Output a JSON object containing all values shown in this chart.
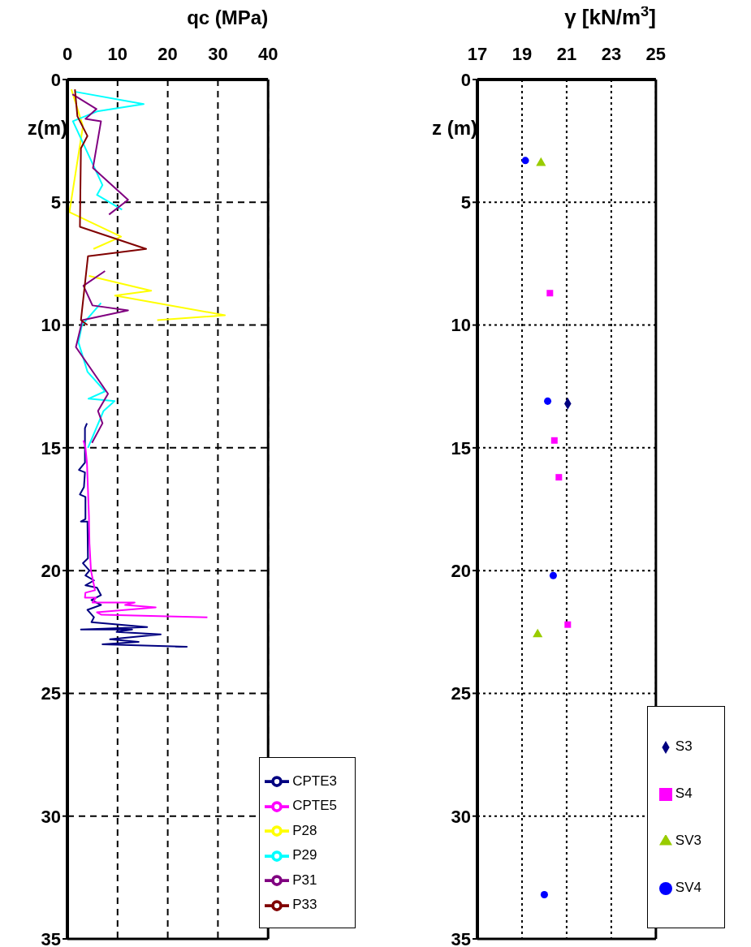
{
  "chart_data": [
    {
      "type": "line",
      "xlabel": "qc (MPa)",
      "ylabel": "z(m)",
      "xlim": [
        0,
        40
      ],
      "xticks": [
        0,
        10,
        20,
        30,
        40
      ],
      "ylim": [
        35,
        0
      ],
      "yticks": [
        0,
        5,
        10,
        15,
        20,
        25,
        30,
        35
      ],
      "grid": true,
      "legend": "bottom right",
      "marker": "none",
      "line_style": "solid",
      "series": [
        {
          "name": "CPTE3",
          "color": "#000080",
          "x": [
            3.9,
            3.5,
            3.5,
            2.3,
            3.5,
            3.3,
            2.5,
            3.6,
            3.6,
            2.7,
            4.0,
            4.1,
            3.1,
            4.4,
            3.6,
            5.3,
            3.6,
            5.9,
            6.7,
            4.8,
            6.7,
            4.0,
            5.3,
            4.8,
            15.9,
            2.7,
            12.9,
            9.8,
            18.6,
            8.5,
            14.2,
            7.0,
            23.8,
            21.5
          ],
          "values": [
            14.0,
            14.2,
            15.6,
            15.9,
            16.0,
            16.6,
            16.9,
            17.0,
            17.9,
            18.0,
            18.0,
            19.5,
            19.7,
            20.0,
            20.2,
            20.4,
            20.6,
            20.7,
            21.0,
            21.2,
            21.4,
            21.6,
            21.9,
            22.1,
            22.3,
            22.4,
            22.4,
            22.5,
            22.6,
            22.8,
            22.9,
            23.0,
            23.1,
            23.1
          ]
        },
        {
          "name": "CPTE5",
          "color": "#ff00ff",
          "x": [
            3.2,
            3.6,
            3.9,
            4.1,
            4.3,
            4.4,
            4.7,
            5.2,
            5.5,
            3.6,
            3.5,
            5.7,
            5.0,
            13.4,
            11.5,
            17.6,
            5.9,
            6.8,
            27.9
          ],
          "values": [
            14.7,
            15.0,
            15.6,
            16.7,
            17.8,
            18.9,
            20.0,
            20.5,
            20.8,
            20.9,
            21.1,
            21.1,
            21.3,
            21.3,
            21.4,
            21.5,
            21.7,
            21.8,
            21.9
          ]
        },
        {
          "name": "P28",
          "color": "#ffff00",
          "x": [
            0.8,
            3.1,
            0.4,
            10.7,
            5.2,
            null,
            4.3,
            16.7,
            9.5,
            31.4,
            17.9
          ],
          "values": [
            0.4,
            1.9,
            5.4,
            6.4,
            6.9,
            null,
            8.0,
            8.6,
            8.8,
            9.6,
            9.8
          ]
        },
        {
          "name": "P29",
          "color": "#00ffff",
          "x": [
            1.6,
            15.2,
            5.9,
            1.1,
            7.0,
            5.9,
            10.9,
            null,
            6.7,
            2.9,
            2.2,
            4.0,
            7.5,
            4.2,
            9.4,
            7.2,
            4.1
          ],
          "values": [
            0.5,
            1.0,
            1.3,
            1.7,
            4.3,
            4.7,
            5.3,
            null,
            9.1,
            10.0,
            10.7,
            11.9,
            12.7,
            13.0,
            13.1,
            13.5,
            15.0
          ]
        },
        {
          "name": "P31",
          "color": "#800080",
          "x": [
            1.0,
            5.8,
            3.6,
            6.7,
            5.1,
            12.1,
            8.3,
            null,
            7.5,
            3.2,
            5.0,
            12.1,
            3.0,
            1.7,
            8.1,
            6.1,
            7.0,
            4.9
          ],
          "values": [
            0.6,
            1.2,
            1.6,
            1.7,
            3.6,
            4.9,
            5.5,
            null,
            7.8,
            8.4,
            9.2,
            9.4,
            9.8,
            10.9,
            12.8,
            13.5,
            14.0,
            14.8
          ]
        },
        {
          "name": "P33",
          "color": "#800000",
          "x": [
            1.5,
            2.0,
            4.0,
            2.7,
            2.5,
            15.7,
            4.1,
            2.7,
            4.0
          ],
          "values": [
            0.4,
            1.5,
            2.3,
            2.8,
            6.0,
            6.9,
            7.2,
            9.8,
            10.0
          ]
        }
      ]
    },
    {
      "type": "scatter",
      "xlabel": "γ [kN/m$^{3}$]",
      "ylabel": "z (m)",
      "xlim": [
        17,
        25
      ],
      "xticks": [
        17,
        19,
        21,
        23,
        25
      ],
      "ylim": [
        35,
        0
      ],
      "yticks": [
        0,
        5,
        10,
        15,
        20,
        25,
        30,
        35
      ],
      "grid": true,
      "legend": "bottom right",
      "series": [
        {
          "name": "S3",
          "color": "#000080",
          "marker": "diamond",
          "x": [
            21.05
          ],
          "values": [
            13.2
          ]
        },
        {
          "name": "S4",
          "color": "#ff00ff",
          "marker": "square",
          "x": [
            20.25,
            20.45,
            20.65,
            21.05
          ],
          "values": [
            8.7,
            14.7,
            16.2,
            22.2
          ]
        },
        {
          "name": "SV3",
          "color": "#99cc00",
          "marker": "triangle",
          "x": [
            19.85,
            19.7
          ],
          "values": [
            3.4,
            22.6
          ]
        },
        {
          "name": "SV4",
          "color": "#0000ff",
          "marker": "circle",
          "x": [
            19.15,
            20.15,
            20.4,
            20.0
          ],
          "values": [
            3.3,
            13.1,
            20.2,
            33.2
          ]
        }
      ]
    }
  ]
}
